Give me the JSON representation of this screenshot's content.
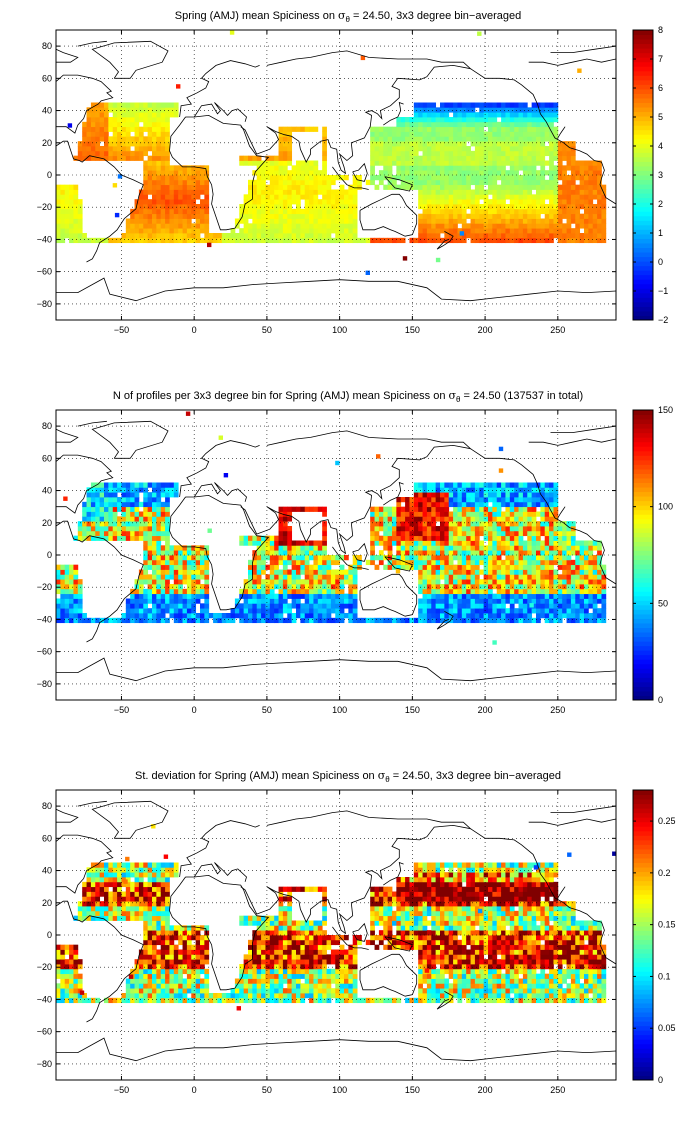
{
  "chart_data": [
    {
      "type": "heatmap",
      "title_prefix": "Spring (AMJ) mean Spiciness on ",
      "title_sigma": "σ",
      "title_sub": "θ",
      "title_suffix": " = 24.50, 3x3 degree bin−averaged",
      "x_ticks": [
        -50,
        0,
        50,
        100,
        150,
        200,
        250
      ],
      "y_ticks": [
        80,
        60,
        40,
        20,
        0,
        -20,
        -40,
        -60,
        -80
      ],
      "xlim": [
        -95,
        290
      ],
      "ylim": [
        -90,
        90
      ],
      "grid": true,
      "colormap": "jet",
      "colorbar": {
        "ticks": [
          8,
          7,
          6,
          5,
          4,
          3,
          2,
          1,
          0,
          -1,
          -2
        ],
        "range": [
          -2,
          8
        ]
      },
      "field": "spiciness"
    },
    {
      "type": "heatmap",
      "title_prefix": "N of profiles per 3x3 degree bin for Spring (AMJ) mean Spiciness on ",
      "title_sigma": "σ",
      "title_sub": "θ",
      "title_suffix": " = 24.50 (137537 in total)",
      "x_ticks": [
        -50,
        0,
        50,
        100,
        150,
        200,
        250
      ],
      "y_ticks": [
        80,
        60,
        40,
        20,
        0,
        -20,
        -40,
        -60,
        -80
      ],
      "xlim": [
        -95,
        290
      ],
      "ylim": [
        -90,
        90
      ],
      "grid": true,
      "colormap": "jet",
      "colorbar": {
        "ticks": [
          150,
          100,
          50,
          0
        ],
        "range": [
          0,
          150
        ]
      },
      "field": "count"
    },
    {
      "type": "heatmap",
      "title_prefix": "St. deviation for Spring (AMJ) mean Spiciness on ",
      "title_sigma": "σ",
      "title_sub": "θ",
      "title_suffix": " = 24.50, 3x3 degree bin−averaged",
      "x_ticks": [
        -50,
        0,
        50,
        100,
        150,
        200,
        250
      ],
      "y_ticks": [
        80,
        60,
        40,
        20,
        0,
        -20,
        -40,
        -60,
        -80
      ],
      "xlim": [
        -95,
        290
      ],
      "ylim": [
        -90,
        90
      ],
      "grid": true,
      "colormap": "jet",
      "colorbar": {
        "ticks": [
          0.25,
          0.2,
          0.15,
          0.1,
          0.05,
          0
        ],
        "range": [
          0,
          0.28
        ]
      },
      "field": "std"
    }
  ]
}
